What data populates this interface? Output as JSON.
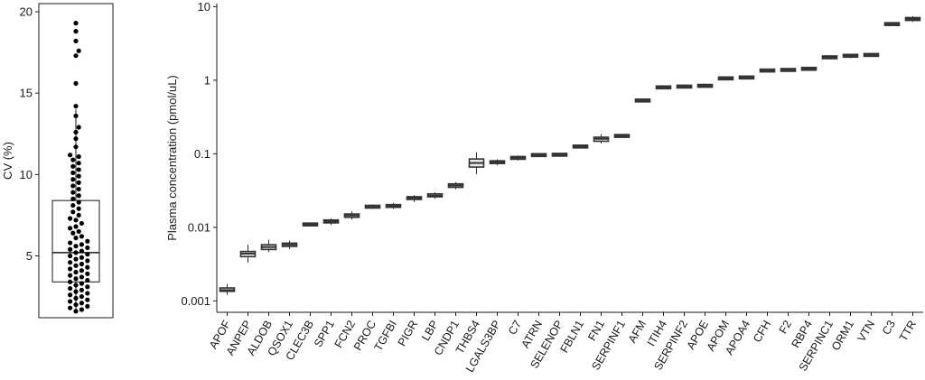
{
  "chart_data": [
    {
      "type": "scatter",
      "subtype": "boxplot-with-points",
      "ylabel": "CV (%)",
      "ylim": [
        1.2,
        20.5
      ],
      "yticks": [
        5,
        10,
        15,
        20
      ],
      "grid": false,
      "box": {
        "q1": 3.4,
        "median": 5.2,
        "q3": 8.4,
        "whisker_low": 1.6,
        "whisker_high": 14.0
      },
      "values": [
        19.3,
        18.8,
        18.2,
        17.6,
        17.3,
        15.6,
        14.2,
        13.6,
        12.9,
        12.6,
        12.2,
        11.7,
        11.2,
        11.1,
        10.9,
        10.7,
        10.5,
        10.3,
        10.1,
        9.9,
        9.7,
        9.5,
        9.3,
        9.1,
        8.9,
        8.7,
        8.5,
        8.3,
        8.1,
        7.9,
        7.7,
        7.5,
        7.3,
        7.2,
        7.0,
        6.8,
        6.7,
        6.5,
        6.4,
        6.2,
        6.1,
        5.9,
        5.8,
        5.7,
        5.6,
        5.5,
        5.4,
        5.3,
        5.2,
        5.1,
        5.0,
        4.9,
        4.8,
        4.7,
        4.6,
        4.5,
        4.4,
        4.3,
        4.2,
        4.1,
        4.0,
        3.9,
        3.8,
        3.7,
        3.6,
        3.5,
        3.4,
        3.3,
        3.2,
        3.1,
        3.0,
        2.9,
        2.8,
        2.7,
        2.6,
        2.5,
        2.4,
        2.3,
        2.2,
        2.1,
        2.0,
        1.9,
        1.8,
        1.7,
        1.6
      ]
    },
    {
      "type": "bar",
      "subtype": "boxplot",
      "ylabel": "Plasma concentration (pmol/uL)",
      "yscale": "log",
      "ylim": [
        0.0007,
        11
      ],
      "yticks": [
        0.001,
        0.01,
        0.1,
        1,
        10
      ],
      "yticklabels": [
        "0.001",
        "0.01",
        "0.1",
        "1",
        "10"
      ],
      "grid": false,
      "categories": [
        "APOF",
        "ANPEP",
        "ALDOB",
        "QSOX1",
        "CLEC3B",
        "SPP1",
        "FCN2",
        "PROC",
        "TGFBI",
        "PIGR",
        "LBP",
        "CNDP1",
        "THBS4",
        "LGALS3BP",
        "C7",
        "ATRN",
        "SELENOP",
        "FBLN1",
        "FN1",
        "SERPINF1",
        "AFM",
        "ITIH4",
        "SERPINF2",
        "APOE",
        "APOM",
        "APOA4",
        "CFH",
        "F2",
        "RBP4",
        "SERPINC1",
        "ORM1",
        "VTN",
        "C3",
        "TTR"
      ],
      "series": [
        {
          "median": [
            0.0014,
            0.0044,
            0.0054,
            0.0058,
            0.011,
            0.012,
            0.0145,
            0.019,
            0.0195,
            0.025,
            0.027,
            0.037,
            0.075,
            0.077,
            0.088,
            0.096,
            0.097,
            0.125,
            0.16,
            0.175,
            0.53,
            0.8,
            0.82,
            0.84,
            1.06,
            1.09,
            1.35,
            1.38,
            1.43,
            2.05,
            2.15,
            2.2,
            5.8,
            6.8
          ],
          "q1": [
            0.00135,
            0.004,
            0.005,
            0.0055,
            0.0107,
            0.0115,
            0.0137,
            0.0185,
            0.0188,
            0.024,
            0.026,
            0.035,
            0.066,
            0.074,
            0.085,
            0.093,
            0.095,
            0.123,
            0.148,
            0.17,
            0.52,
            0.78,
            0.79,
            0.81,
            1.04,
            1.07,
            1.33,
            1.36,
            1.41,
            2.0,
            2.08,
            2.17,
            5.7,
            6.5
          ],
          "q3": [
            0.0015,
            0.0047,
            0.0058,
            0.0061,
            0.0112,
            0.0126,
            0.0152,
            0.0197,
            0.0203,
            0.026,
            0.0285,
            0.039,
            0.085,
            0.08,
            0.091,
            0.099,
            0.099,
            0.128,
            0.168,
            0.18,
            0.54,
            0.82,
            0.85,
            0.87,
            1.08,
            1.11,
            1.38,
            1.4,
            1.45,
            2.1,
            2.22,
            2.24,
            5.9,
            7.1
          ],
          "whisker_low": [
            0.0012,
            0.0033,
            0.0046,
            0.0051,
            0.0104,
            0.0108,
            0.0128,
            0.0178,
            0.0178,
            0.022,
            0.0245,
            0.033,
            0.053,
            0.07,
            0.081,
            0.09,
            0.093,
            0.12,
            0.138,
            0.165,
            0.51,
            0.77,
            0.77,
            0.79,
            1.02,
            1.05,
            1.3,
            1.34,
            1.4,
            1.96,
            2.0,
            2.15,
            5.6,
            6.2
          ],
          "whisker_high": [
            0.0017,
            0.0058,
            0.0068,
            0.0066,
            0.0114,
            0.0132,
            0.0165,
            0.0205,
            0.0215,
            0.0275,
            0.03,
            0.041,
            0.105,
            0.084,
            0.095,
            0.102,
            0.101,
            0.131,
            0.185,
            0.185,
            0.55,
            0.84,
            0.88,
            0.9,
            1.1,
            1.13,
            1.41,
            1.42,
            1.48,
            2.14,
            2.3,
            2.27,
            6.0,
            7.4
          ]
        }
      ]
    }
  ]
}
